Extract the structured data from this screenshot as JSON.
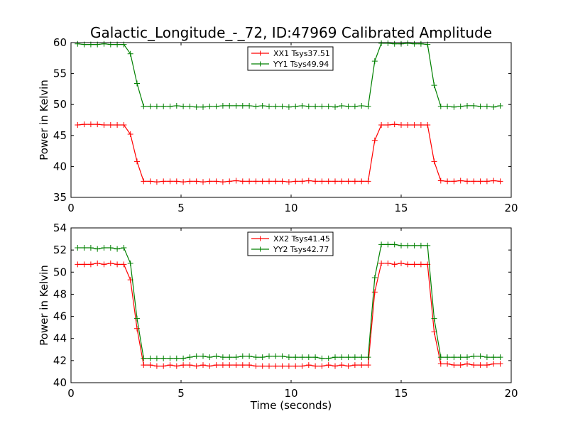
{
  "figure": {
    "title": "Galactic_Longitude_-_72, ID:47969 Calibrated Amplitude"
  },
  "chart_data": [
    {
      "type": "line",
      "title": "Galactic_Longitude_-_72, ID:47969 Calibrated Amplitude",
      "xlabel": "",
      "ylabel": "Power in Kelvin",
      "xlim": [
        0,
        20
      ],
      "ylim": [
        35,
        60
      ],
      "xticks": [
        0,
        5,
        10,
        15,
        20
      ],
      "yticks": [
        35,
        40,
        45,
        50,
        55,
        60
      ],
      "legend_position": "upper-center",
      "grid": false,
      "x": [
        0.3,
        0.6,
        0.9,
        1.2,
        1.5,
        1.8,
        2.1,
        2.4,
        2.7,
        3.0,
        3.3,
        3.6,
        3.9,
        4.2,
        4.5,
        4.8,
        5.1,
        5.4,
        5.7,
        6.0,
        6.3,
        6.6,
        6.9,
        7.2,
        7.5,
        7.8,
        8.1,
        8.4,
        8.7,
        9.0,
        9.3,
        9.6,
        9.9,
        10.2,
        10.5,
        10.8,
        11.1,
        11.4,
        11.7,
        12.0,
        12.3,
        12.6,
        12.9,
        13.2,
        13.5,
        13.8,
        14.1,
        14.4,
        14.7,
        15.0,
        15.3,
        15.6,
        15.9,
        16.2,
        16.5,
        16.8,
        17.1,
        17.4,
        17.7,
        18.0,
        18.3,
        18.6,
        18.9,
        19.2,
        19.5
      ],
      "series": [
        {
          "name": "XX1 Tsys37.51",
          "color": "#ff0000",
          "values": [
            46.7,
            46.8,
            46.8,
            46.8,
            46.7,
            46.7,
            46.7,
            46.7,
            45.2,
            40.8,
            37.6,
            37.6,
            37.5,
            37.6,
            37.6,
            37.6,
            37.5,
            37.6,
            37.6,
            37.5,
            37.6,
            37.6,
            37.5,
            37.6,
            37.7,
            37.6,
            37.6,
            37.6,
            37.6,
            37.6,
            37.6,
            37.6,
            37.5,
            37.6,
            37.6,
            37.7,
            37.6,
            37.6,
            37.6,
            37.6,
            37.6,
            37.6,
            37.6,
            37.6,
            37.6,
            44.2,
            46.7,
            46.7,
            46.8,
            46.7,
            46.7,
            46.7,
            46.7,
            46.7,
            40.8,
            37.7,
            37.6,
            37.6,
            37.7,
            37.6,
            37.6,
            37.6,
            37.6,
            37.7,
            37.6
          ]
        },
        {
          "name": "YY1 Tsys49.94",
          "color": "#008000",
          "values": [
            59.8,
            59.7,
            59.7,
            59.7,
            59.8,
            59.7,
            59.7,
            59.7,
            58.2,
            53.4,
            49.7,
            49.7,
            49.7,
            49.7,
            49.7,
            49.8,
            49.7,
            49.7,
            49.6,
            49.6,
            49.7,
            49.7,
            49.8,
            49.8,
            49.8,
            49.8,
            49.8,
            49.7,
            49.8,
            49.7,
            49.7,
            49.7,
            49.6,
            49.7,
            49.8,
            49.7,
            49.7,
            49.7,
            49.7,
            49.6,
            49.8,
            49.7,
            49.7,
            49.8,
            49.7,
            57.0,
            59.9,
            59.9,
            59.8,
            59.8,
            59.9,
            59.8,
            59.8,
            59.7,
            53.1,
            49.7,
            49.7,
            49.6,
            49.7,
            49.8,
            49.8,
            49.7,
            49.7,
            49.6,
            49.8
          ]
        }
      ]
    },
    {
      "type": "line",
      "title": "",
      "xlabel": "Time (seconds)",
      "ylabel": "Power in Kelvin",
      "xlim": [
        0,
        20
      ],
      "ylim": [
        40,
        54
      ],
      "xticks": [
        0,
        5,
        10,
        15,
        20
      ],
      "yticks": [
        40,
        42,
        44,
        46,
        48,
        50,
        52,
        54
      ],
      "legend_position": "upper-center",
      "grid": false,
      "x": [
        0.3,
        0.6,
        0.9,
        1.2,
        1.5,
        1.8,
        2.1,
        2.4,
        2.7,
        3.0,
        3.3,
        3.6,
        3.9,
        4.2,
        4.5,
        4.8,
        5.1,
        5.4,
        5.7,
        6.0,
        6.3,
        6.6,
        6.9,
        7.2,
        7.5,
        7.8,
        8.1,
        8.4,
        8.7,
        9.0,
        9.3,
        9.6,
        9.9,
        10.2,
        10.5,
        10.8,
        11.1,
        11.4,
        11.7,
        12.0,
        12.3,
        12.6,
        12.9,
        13.2,
        13.5,
        13.8,
        14.1,
        14.4,
        14.7,
        15.0,
        15.3,
        15.6,
        15.9,
        16.2,
        16.5,
        16.8,
        17.1,
        17.4,
        17.7,
        18.0,
        18.3,
        18.6,
        18.9,
        19.2,
        19.5
      ],
      "series": [
        {
          "name": "XX2 Tsys41.45",
          "color": "#ff0000",
          "values": [
            50.7,
            50.7,
            50.7,
            50.8,
            50.7,
            50.8,
            50.7,
            50.7,
            49.3,
            44.9,
            41.6,
            41.6,
            41.5,
            41.5,
            41.6,
            41.5,
            41.6,
            41.6,
            41.5,
            41.6,
            41.5,
            41.6,
            41.6,
            41.6,
            41.6,
            41.6,
            41.6,
            41.5,
            41.5,
            41.5,
            41.5,
            41.5,
            41.5,
            41.5,
            41.5,
            41.6,
            41.5,
            41.5,
            41.6,
            41.5,
            41.6,
            41.5,
            41.6,
            41.6,
            41.6,
            48.2,
            50.8,
            50.8,
            50.7,
            50.8,
            50.7,
            50.7,
            50.7,
            50.7,
            44.6,
            41.7,
            41.7,
            41.6,
            41.6,
            41.7,
            41.6,
            41.6,
            41.6,
            41.7,
            41.7
          ]
        },
        {
          "name": "YY2 Tsys42.77",
          "color": "#008000",
          "values": [
            52.2,
            52.2,
            52.2,
            52.1,
            52.2,
            52.2,
            52.1,
            52.2,
            50.8,
            45.8,
            42.2,
            42.2,
            42.2,
            42.2,
            42.2,
            42.2,
            42.2,
            42.3,
            42.4,
            42.4,
            42.3,
            42.4,
            42.3,
            42.3,
            42.3,
            42.4,
            42.4,
            42.3,
            42.3,
            42.4,
            42.4,
            42.4,
            42.3,
            42.3,
            42.3,
            42.3,
            42.3,
            42.2,
            42.2,
            42.3,
            42.3,
            42.3,
            42.3,
            42.3,
            42.3,
            49.5,
            52.5,
            52.5,
            52.5,
            52.4,
            52.4,
            52.4,
            52.4,
            52.4,
            45.8,
            42.3,
            42.3,
            42.3,
            42.3,
            42.3,
            42.4,
            42.4,
            42.3,
            42.3,
            42.3
          ]
        }
      ]
    }
  ]
}
